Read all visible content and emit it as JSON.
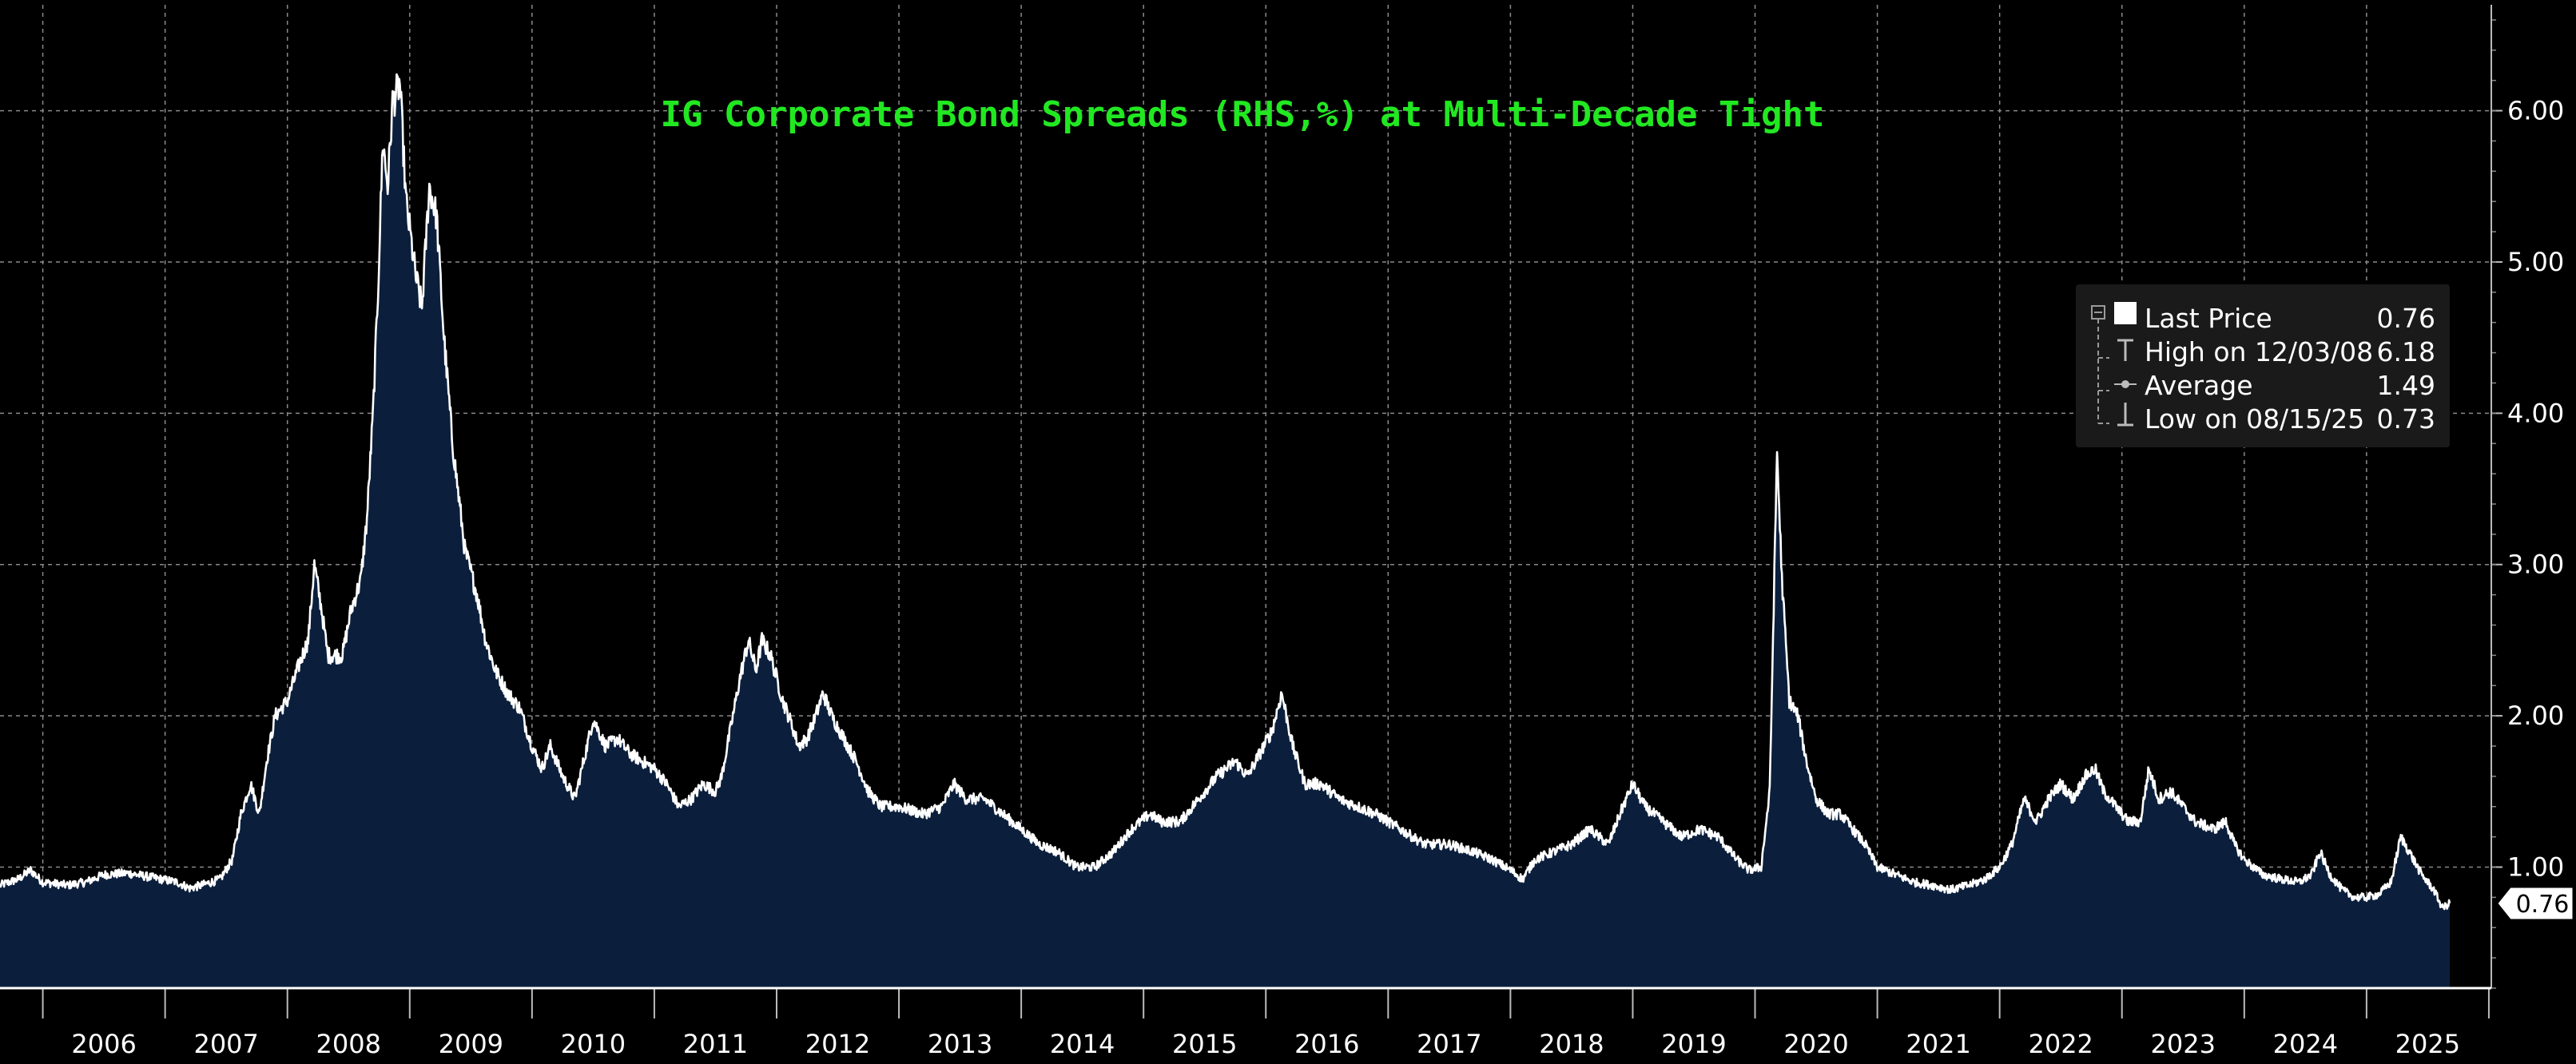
{
  "chart_data": {
    "type": "area",
    "title": "IG Corporate Bond Spreads (RHS,%) at Multi-Decade Tight",
    "xlabel": "",
    "ylabel": "",
    "y_axis_side": "right",
    "ylim": [
      0.2,
      6.7
    ],
    "y_ticks": [
      {
        "value": 1.0,
        "label": "1.00"
      },
      {
        "value": 2.0,
        "label": "2.00"
      },
      {
        "value": 3.0,
        "label": "3.00"
      },
      {
        "value": 4.0,
        "label": "4.00"
      },
      {
        "value": 5.0,
        "label": "5.00"
      },
      {
        "value": 6.0,
        "label": "6.00"
      }
    ],
    "x_range": [
      2005.65,
      2026.02
    ],
    "x_labels": [
      "2006",
      "2007",
      "2008",
      "2009",
      "2010",
      "2011",
      "2012",
      "2013",
      "2014",
      "2015",
      "2016",
      "2017",
      "2018",
      "2019",
      "2020",
      "2021",
      "2022",
      "2023",
      "2024",
      "2025"
    ],
    "grid": true,
    "colors": {
      "background": "#000000",
      "area_fill": "#0b1f3d",
      "line": "#ffffff",
      "grid": "#8a8a8a",
      "title": "#21e821",
      "legend_bg": "#1a1a1a"
    },
    "series": [
      {
        "name": "Last Price",
        "points": [
          [
            2005.65,
            0.88
          ],
          [
            2005.8,
            0.92
          ],
          [
            2005.9,
            0.98
          ],
          [
            2006.0,
            0.9
          ],
          [
            2006.2,
            0.88
          ],
          [
            2006.35,
            0.9
          ],
          [
            2006.5,
            0.95
          ],
          [
            2006.7,
            0.96
          ],
          [
            2006.9,
            0.93
          ],
          [
            2007.1,
            0.9
          ],
          [
            2007.2,
            0.86
          ],
          [
            2007.3,
            0.88
          ],
          [
            2007.45,
            0.92
          ],
          [
            2007.55,
            1.05
          ],
          [
            2007.62,
            1.35
          ],
          [
            2007.7,
            1.55
          ],
          [
            2007.77,
            1.35
          ],
          [
            2007.83,
            1.7
          ],
          [
            2007.9,
            2.0
          ],
          [
            2008.0,
            2.1
          ],
          [
            2008.1,
            2.35
          ],
          [
            2008.17,
            2.5
          ],
          [
            2008.22,
            3.0
          ],
          [
            2008.28,
            2.7
          ],
          [
            2008.33,
            2.4
          ],
          [
            2008.45,
            2.4
          ],
          [
            2008.52,
            2.7
          ],
          [
            2008.6,
            2.9
          ],
          [
            2008.65,
            3.3
          ],
          [
            2008.7,
            4.0
          ],
          [
            2008.74,
            4.8
          ],
          [
            2008.78,
            5.8
          ],
          [
            2008.82,
            5.5
          ],
          [
            2008.86,
            6.05
          ],
          [
            2008.92,
            6.18
          ],
          [
            2008.97,
            5.4
          ],
          [
            2009.05,
            4.9
          ],
          [
            2009.1,
            4.7
          ],
          [
            2009.16,
            5.5
          ],
          [
            2009.22,
            5.3
          ],
          [
            2009.28,
            4.5
          ],
          [
            2009.35,
            3.8
          ],
          [
            2009.45,
            3.1
          ],
          [
            2009.55,
            2.8
          ],
          [
            2009.62,
            2.5
          ],
          [
            2009.7,
            2.3
          ],
          [
            2009.8,
            2.15
          ],
          [
            2009.9,
            2.05
          ],
          [
            2010.0,
            1.8
          ],
          [
            2010.08,
            1.65
          ],
          [
            2010.15,
            1.8
          ],
          [
            2010.25,
            1.6
          ],
          [
            2010.35,
            1.45
          ],
          [
            2010.45,
            1.8
          ],
          [
            2010.5,
            1.98
          ],
          [
            2010.6,
            1.8
          ],
          [
            2010.7,
            1.85
          ],
          [
            2010.8,
            1.75
          ],
          [
            2010.9,
            1.7
          ],
          [
            2011.0,
            1.65
          ],
          [
            2011.1,
            1.55
          ],
          [
            2011.2,
            1.4
          ],
          [
            2011.3,
            1.45
          ],
          [
            2011.4,
            1.55
          ],
          [
            2011.5,
            1.5
          ],
          [
            2011.55,
            1.6
          ],
          [
            2011.62,
            1.9
          ],
          [
            2011.7,
            2.25
          ],
          [
            2011.77,
            2.5
          ],
          [
            2011.83,
            2.3
          ],
          [
            2011.88,
            2.5
          ],
          [
            2011.95,
            2.4
          ],
          [
            2012.05,
            2.1
          ],
          [
            2012.12,
            1.95
          ],
          [
            2012.18,
            1.8
          ],
          [
            2012.25,
            1.85
          ],
          [
            2012.32,
            2.0
          ],
          [
            2012.38,
            2.15
          ],
          [
            2012.45,
            2.0
          ],
          [
            2012.55,
            1.85
          ],
          [
            2012.65,
            1.7
          ],
          [
            2012.75,
            1.5
          ],
          [
            2012.85,
            1.4
          ],
          [
            2013.0,
            1.4
          ],
          [
            2013.2,
            1.35
          ],
          [
            2013.35,
            1.4
          ],
          [
            2013.45,
            1.55
          ],
          [
            2013.55,
            1.45
          ],
          [
            2013.7,
            1.45
          ],
          [
            2013.85,
            1.35
          ],
          [
            2014.0,
            1.25
          ],
          [
            2014.15,
            1.15
          ],
          [
            2014.3,
            1.1
          ],
          [
            2014.45,
            1.0
          ],
          [
            2014.6,
            1.0
          ],
          [
            2014.75,
            1.1
          ],
          [
            2014.9,
            1.25
          ],
          [
            2015.05,
            1.35
          ],
          [
            2015.15,
            1.3
          ],
          [
            2015.3,
            1.3
          ],
          [
            2015.45,
            1.45
          ],
          [
            2015.6,
            1.6
          ],
          [
            2015.75,
            1.7
          ],
          [
            2015.85,
            1.6
          ],
          [
            2015.95,
            1.75
          ],
          [
            2016.05,
            1.9
          ],
          [
            2016.13,
            2.15
          ],
          [
            2016.22,
            1.8
          ],
          [
            2016.32,
            1.55
          ],
          [
            2016.45,
            1.55
          ],
          [
            2016.6,
            1.45
          ],
          [
            2016.75,
            1.4
          ],
          [
            2016.9,
            1.35
          ],
          [
            2017.1,
            1.25
          ],
          [
            2017.3,
            1.15
          ],
          [
            2017.5,
            1.15
          ],
          [
            2017.7,
            1.1
          ],
          [
            2017.85,
            1.05
          ],
          [
            2018.0,
            0.98
          ],
          [
            2018.1,
            0.92
          ],
          [
            2018.2,
            1.05
          ],
          [
            2018.35,
            1.1
          ],
          [
            2018.5,
            1.15
          ],
          [
            2018.65,
            1.25
          ],
          [
            2018.8,
            1.15
          ],
          [
            2018.92,
            1.4
          ],
          [
            2019.0,
            1.55
          ],
          [
            2019.1,
            1.4
          ],
          [
            2019.25,
            1.3
          ],
          [
            2019.4,
            1.2
          ],
          [
            2019.55,
            1.25
          ],
          [
            2019.7,
            1.2
          ],
          [
            2019.85,
            1.05
          ],
          [
            2019.95,
            0.98
          ],
          [
            2020.05,
            1.0
          ],
          [
            2020.12,
            1.5
          ],
          [
            2020.18,
            3.75
          ],
          [
            2020.22,
            2.9
          ],
          [
            2020.28,
            2.1
          ],
          [
            2020.35,
            2.0
          ],
          [
            2020.42,
            1.7
          ],
          [
            2020.5,
            1.45
          ],
          [
            2020.6,
            1.35
          ],
          [
            2020.7,
            1.35
          ],
          [
            2020.8,
            1.25
          ],
          [
            2020.9,
            1.15
          ],
          [
            2021.0,
            1.0
          ],
          [
            2021.15,
            0.95
          ],
          [
            2021.3,
            0.9
          ],
          [
            2021.45,
            0.88
          ],
          [
            2021.6,
            0.85
          ],
          [
            2021.75,
            0.88
          ],
          [
            2021.88,
            0.92
          ],
          [
            2022.0,
            1.0
          ],
          [
            2022.1,
            1.15
          ],
          [
            2022.2,
            1.45
          ],
          [
            2022.3,
            1.3
          ],
          [
            2022.4,
            1.45
          ],
          [
            2022.5,
            1.55
          ],
          [
            2022.6,
            1.45
          ],
          [
            2022.7,
            1.6
          ],
          [
            2022.78,
            1.65
          ],
          [
            2022.85,
            1.5
          ],
          [
            2022.95,
            1.4
          ],
          [
            2023.05,
            1.3
          ],
          [
            2023.15,
            1.3
          ],
          [
            2023.22,
            1.65
          ],
          [
            2023.3,
            1.45
          ],
          [
            2023.4,
            1.5
          ],
          [
            2023.5,
            1.4
          ],
          [
            2023.6,
            1.3
          ],
          [
            2023.75,
            1.25
          ],
          [
            2023.85,
            1.3
          ],
          [
            2023.92,
            1.15
          ],
          [
            2024.0,
            1.05
          ],
          [
            2024.15,
            0.95
          ],
          [
            2024.3,
            0.92
          ],
          [
            2024.45,
            0.9
          ],
          [
            2024.55,
            0.95
          ],
          [
            2024.62,
            1.1
          ],
          [
            2024.7,
            0.95
          ],
          [
            2024.8,
            0.85
          ],
          [
            2024.9,
            0.8
          ],
          [
            2025.0,
            0.8
          ],
          [
            2025.1,
            0.82
          ],
          [
            2025.2,
            0.9
          ],
          [
            2025.28,
            1.2
          ],
          [
            2025.35,
            1.1
          ],
          [
            2025.45,
            0.95
          ],
          [
            2025.55,
            0.85
          ],
          [
            2025.62,
            0.73
          ],
          [
            2025.68,
            0.76
          ]
        ]
      }
    ],
    "legend": {
      "placement": "right",
      "entries": [
        {
          "label": "Last Price",
          "value": "0.76"
        },
        {
          "label": "High on 12/03/08",
          "value": "6.18"
        },
        {
          "label": "Average",
          "value": "1.49"
        },
        {
          "label": "Low on 08/15/25",
          "value": "0.73"
        }
      ]
    },
    "last_value_tag": {
      "value": 0.76,
      "label": "0.76"
    }
  }
}
